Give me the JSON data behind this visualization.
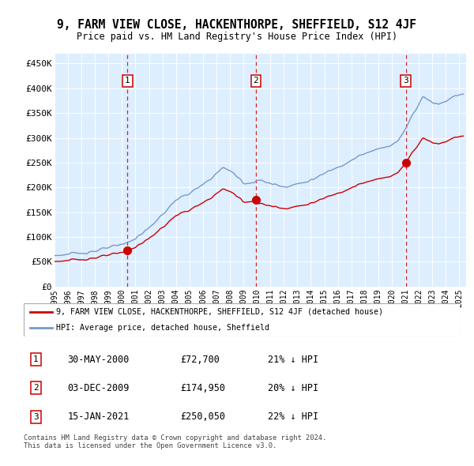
{
  "title": "9, FARM VIEW CLOSE, HACKENTHORPE, SHEFFIELD, S12 4JF",
  "subtitle": "Price paid vs. HM Land Registry's House Price Index (HPI)",
  "xlim": [
    1995,
    2025.5
  ],
  "ylim": [
    0,
    470000
  ],
  "yticks": [
    0,
    50000,
    100000,
    150000,
    200000,
    250000,
    300000,
    350000,
    400000,
    450000
  ],
  "ytick_labels": [
    "£0",
    "£50K",
    "£100K",
    "£150K",
    "£200K",
    "£250K",
    "£300K",
    "£350K",
    "£400K",
    "£450K"
  ],
  "xtick_years": [
    1995,
    1996,
    1997,
    1998,
    1999,
    2000,
    2001,
    2002,
    2003,
    2004,
    2005,
    2006,
    2007,
    2008,
    2009,
    2010,
    2011,
    2012,
    2013,
    2014,
    2015,
    2016,
    2017,
    2018,
    2019,
    2020,
    2021,
    2022,
    2023,
    2024,
    2025
  ],
  "sale1_x": 2000.41,
  "sale1_y": 72700,
  "sale2_x": 2009.92,
  "sale2_y": 174950,
  "sale3_x": 2021.04,
  "sale3_y": 250050,
  "hpi_color": "#7799cc",
  "sale_color": "#cc0000",
  "dashed_color": "#cc0000",
  "marker_box_color": "#cc0000",
  "plot_bg": "#ddeeff",
  "grid_color": "#ffffff",
  "legend_label_red": "9, FARM VIEW CLOSE, HACKENTHORPE, SHEFFIELD, S12 4JF (detached house)",
  "legend_label_blue": "HPI: Average price, detached house, Sheffield",
  "table_rows": [
    {
      "num": "1",
      "date": "30-MAY-2000",
      "price": "£72,700",
      "hpi": "21% ↓ HPI"
    },
    {
      "num": "2",
      "date": "03-DEC-2009",
      "price": "£174,950",
      "hpi": "20% ↓ HPI"
    },
    {
      "num": "3",
      "date": "15-JAN-2021",
      "price": "£250,050",
      "hpi": "22% ↓ HPI"
    }
  ],
  "footnote": "Contains HM Land Registry data © Crown copyright and database right 2024.\nThis data is licensed under the Open Government Licence v3.0.",
  "hpi_keypoints": [
    [
      1995.0,
      63000
    ],
    [
      1996.0,
      65000
    ],
    [
      1997.0,
      68000
    ],
    [
      1998.0,
      72000
    ],
    [
      1999.0,
      78000
    ],
    [
      2000.0,
      85000
    ],
    [
      2001.0,
      97000
    ],
    [
      2002.0,
      118000
    ],
    [
      2003.0,
      145000
    ],
    [
      2004.0,
      175000
    ],
    [
      2005.0,
      188000
    ],
    [
      2006.0,
      205000
    ],
    [
      2007.0,
      228000
    ],
    [
      2007.5,
      240000
    ],
    [
      2008.0,
      235000
    ],
    [
      2008.5,
      222000
    ],
    [
      2009.0,
      210000
    ],
    [
      2009.5,
      208000
    ],
    [
      2010.0,
      215000
    ],
    [
      2010.5,
      212000
    ],
    [
      2011.0,
      208000
    ],
    [
      2011.5,
      205000
    ],
    [
      2012.0,
      202000
    ],
    [
      2012.5,
      204000
    ],
    [
      2013.0,
      207000
    ],
    [
      2013.5,
      210000
    ],
    [
      2014.0,
      215000
    ],
    [
      2014.5,
      220000
    ],
    [
      2015.0,
      228000
    ],
    [
      2015.5,
      235000
    ],
    [
      2016.0,
      242000
    ],
    [
      2016.5,
      248000
    ],
    [
      2017.0,
      255000
    ],
    [
      2017.5,
      262000
    ],
    [
      2018.0,
      268000
    ],
    [
      2018.5,
      272000
    ],
    [
      2019.0,
      278000
    ],
    [
      2019.5,
      283000
    ],
    [
      2020.0,
      285000
    ],
    [
      2020.5,
      295000
    ],
    [
      2021.0,
      318000
    ],
    [
      2021.5,
      345000
    ],
    [
      2022.0,
      368000
    ],
    [
      2022.3,
      385000
    ],
    [
      2022.6,
      378000
    ],
    [
      2023.0,
      372000
    ],
    [
      2023.5,
      368000
    ],
    [
      2024.0,
      375000
    ],
    [
      2024.5,
      382000
    ],
    [
      2025.0,
      388000
    ]
  ]
}
